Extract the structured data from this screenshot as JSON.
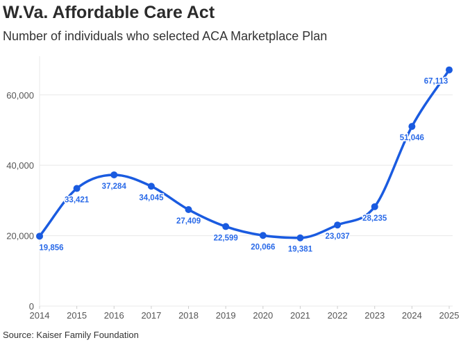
{
  "chart_data": {
    "type": "line",
    "title": "W.Va. Affordable Care Act",
    "subtitle": "Number of individuals who selected ACA Marketplace Plan",
    "source": "Source: Kaiser Family Foundation",
    "xlabel": "",
    "ylabel": "",
    "x": [
      2014,
      2015,
      2016,
      2017,
      2018,
      2019,
      2020,
      2021,
      2022,
      2023,
      2024,
      2025
    ],
    "values": [
      19856,
      33421,
      37284,
      34045,
      27409,
      22599,
      20066,
      19381,
      23037,
      28235,
      51046,
      67113
    ],
    "data_labels": [
      "19,856",
      "33,421",
      "37,284",
      "34,045",
      "27,409",
      "22,599",
      "20,066",
      "19,381",
      "23,037",
      "28,235",
      "51,046",
      "67,113"
    ],
    "y_ticks": [
      0,
      20000,
      40000,
      60000
    ],
    "y_tick_labels": [
      "0",
      "20,000",
      "40,000",
      "60,000"
    ],
    "x_tick_labels": [
      "2014",
      "2015",
      "2016",
      "2017",
      "2018",
      "2019",
      "2020",
      "2021",
      "2022",
      "2023",
      "2024",
      "2025"
    ],
    "ylim": [
      0,
      71000
    ],
    "xlim": [
      2014,
      2025
    ],
    "grid": true,
    "smooth": true,
    "line_color": "#1a5be0",
    "label_color": "#2a6ae8"
  }
}
